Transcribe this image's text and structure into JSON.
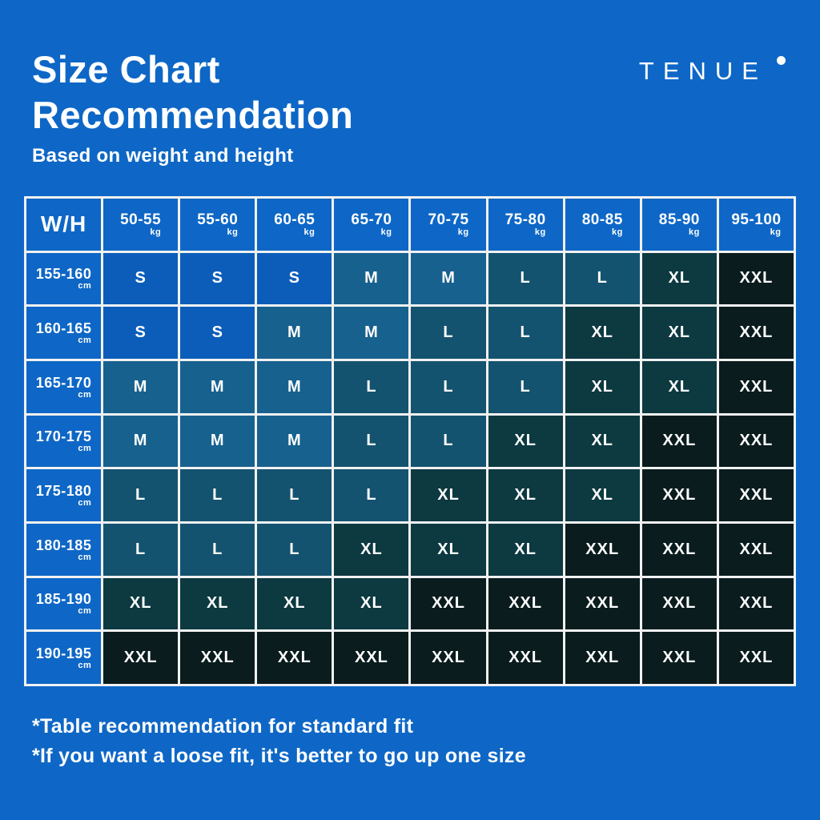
{
  "page": {
    "background": "#0E67C6",
    "grid_line_color": "#F1F1F1"
  },
  "header": {
    "title_line1": "Size Chart",
    "title_line2": "Recommendation",
    "subtitle": "Based on weight and height",
    "brand": "TENUE"
  },
  "table": {
    "corner_label": "W/H",
    "weight_unit": "kg",
    "height_unit": "cm",
    "weight_columns": [
      "50-55",
      "55-60",
      "60-65",
      "65-70",
      "70-75",
      "75-80",
      "80-85",
      "85-90",
      "95-100"
    ],
    "height_rows": [
      "155-160",
      "160-165",
      "165-170",
      "170-175",
      "175-180",
      "180-185",
      "185-190",
      "190-195"
    ],
    "sizes": [
      [
        "S",
        "S",
        "S",
        "M",
        "M",
        "L",
        "L",
        "XL",
        "XXL"
      ],
      [
        "S",
        "S",
        "M",
        "M",
        "L",
        "L",
        "XL",
        "XL",
        "XXL"
      ],
      [
        "M",
        "M",
        "M",
        "L",
        "L",
        "L",
        "XL",
        "XL",
        "XXL"
      ],
      [
        "M",
        "M",
        "M",
        "L",
        "L",
        "XL",
        "XL",
        "XXL",
        "XXL"
      ],
      [
        "L",
        "L",
        "L",
        "L",
        "XL",
        "XL",
        "XL",
        "XXL",
        "XXL"
      ],
      [
        "L",
        "L",
        "L",
        "XL",
        "XL",
        "XL",
        "XXL",
        "XXL",
        "XXL"
      ],
      [
        "XL",
        "XL",
        "XL",
        "XL",
        "XXL",
        "XXL",
        "XXL",
        "XXL",
        "XXL"
      ],
      [
        "XXL",
        "XXL",
        "XXL",
        "XXL",
        "XXL",
        "XXL",
        "XXL",
        "XXL",
        "XXL"
      ]
    ],
    "size_colors": {
      "S": "#0C5DBA",
      "M": "#17618E",
      "L": "#14536F",
      "XL": "#0D3941",
      "XXL": "#0A1C1E"
    }
  },
  "footnotes": {
    "line1": "*Table recommendation for standard fit",
    "line2": "*If you want a loose fit, it's better to go up one size"
  },
  "chart_data": {
    "type": "heatmap",
    "title": "Size Chart Recommendation",
    "subtitle": "Based on weight and height",
    "corner_label": "W/H",
    "x_unit": "kg",
    "y_unit": "cm",
    "x_categories": [
      "50-55",
      "55-60",
      "60-65",
      "65-70",
      "70-75",
      "75-80",
      "80-85",
      "85-90",
      "95-100"
    ],
    "y_categories": [
      "155-160",
      "160-165",
      "165-170",
      "170-175",
      "175-180",
      "180-185",
      "185-190",
      "190-195"
    ],
    "values": [
      [
        "S",
        "S",
        "S",
        "M",
        "M",
        "L",
        "L",
        "XL",
        "XXL"
      ],
      [
        "S",
        "S",
        "M",
        "M",
        "L",
        "L",
        "XL",
        "XL",
        "XXL"
      ],
      [
        "M",
        "M",
        "M",
        "L",
        "L",
        "L",
        "XL",
        "XL",
        "XXL"
      ],
      [
        "M",
        "M",
        "M",
        "L",
        "L",
        "XL",
        "XL",
        "XXL",
        "XXL"
      ],
      [
        "L",
        "L",
        "L",
        "L",
        "XL",
        "XL",
        "XL",
        "XXL",
        "XXL"
      ],
      [
        "L",
        "L",
        "L",
        "XL",
        "XL",
        "XL",
        "XXL",
        "XXL",
        "XXL"
      ],
      [
        "XL",
        "XL",
        "XL",
        "XL",
        "XXL",
        "XXL",
        "XXL",
        "XXL",
        "XXL"
      ],
      [
        "XXL",
        "XXL",
        "XXL",
        "XXL",
        "XXL",
        "XXL",
        "XXL",
        "XXL",
        "XXL"
      ]
    ],
    "legend": {
      "S": "#0C5DBA",
      "M": "#17618E",
      "L": "#14536F",
      "XL": "#0D3941",
      "XXL": "#0A1C1E"
    },
    "annotations": [
      "*Table recommendation for standard fit",
      "*If you want a loose fit, it's better to go up one size"
    ]
  }
}
